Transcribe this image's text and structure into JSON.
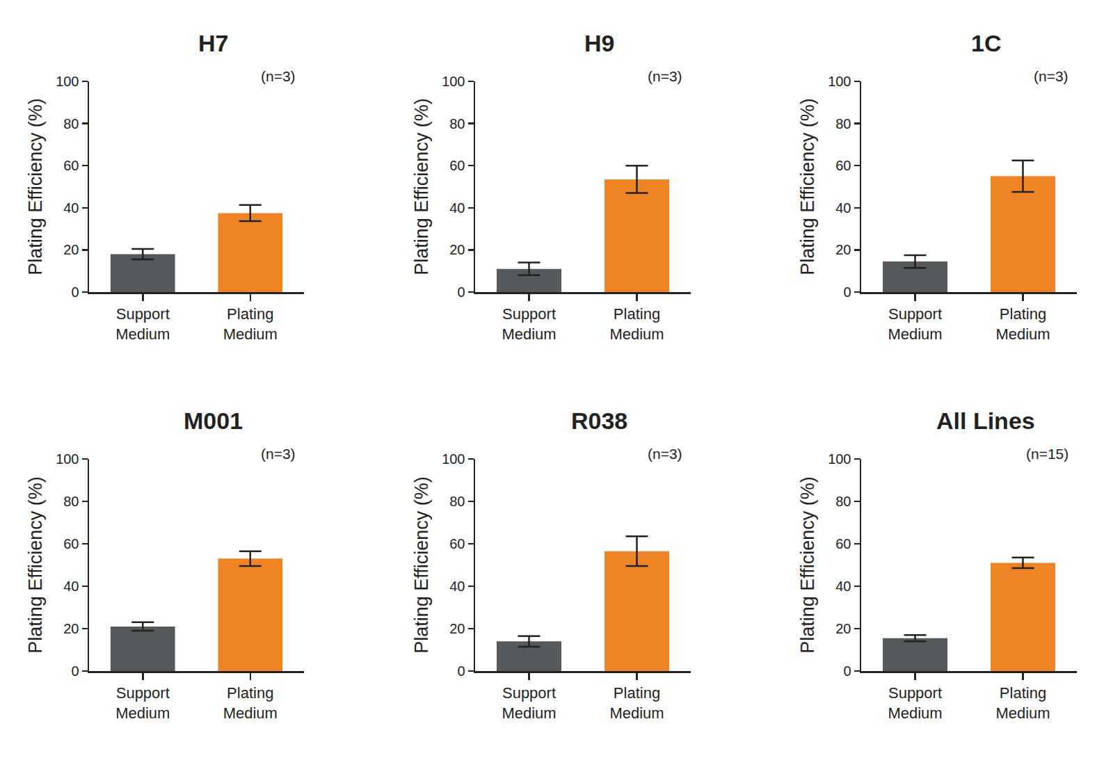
{
  "chart_data": [
    {
      "type": "bar",
      "title": "H7",
      "annotation": "(n=3)",
      "y_label": "Plating Efficiency (%)",
      "categories": [
        "Support Medium",
        "Plating Medium"
      ],
      "values": [
        18,
        37.5
      ],
      "errors": [
        2.5,
        3.8
      ],
      "colors": [
        "#555a5d",
        "#ee8426"
      ],
      "ylim": [
        0,
        100
      ],
      "yticks": [
        0,
        20,
        40,
        60,
        80,
        100
      ],
      "grid": false
    },
    {
      "type": "bar",
      "title": "H9",
      "annotation": "(n=3)",
      "y_label": "Plating Efficiency (%)",
      "categories": [
        "Support Medium",
        "Plating Medium"
      ],
      "values": [
        11,
        53.5
      ],
      "errors": [
        3,
        6.5
      ],
      "colors": [
        "#555a5d",
        "#ee8426"
      ],
      "ylim": [
        0,
        100
      ],
      "yticks": [
        0,
        20,
        40,
        60,
        80,
        100
      ],
      "grid": false
    },
    {
      "type": "bar",
      "title": "1C",
      "annotation": "(n=3)",
      "y_label": "Plating Efficiency (%)",
      "categories": [
        "Support Medium",
        "Plating Medium"
      ],
      "values": [
        14.5,
        55
      ],
      "errors": [
        3,
        7.5
      ],
      "colors": [
        "#555a5d",
        "#ee8426"
      ],
      "ylim": [
        0,
        100
      ],
      "yticks": [
        0,
        20,
        40,
        60,
        80,
        100
      ],
      "grid": false
    },
    {
      "type": "bar",
      "title": "M001",
      "annotation": "(n=3)",
      "y_label": "Plating Efficiency (%)",
      "categories": [
        "Support Medium",
        "Plating Medium"
      ],
      "values": [
        21,
        53
      ],
      "errors": [
        2,
        3.5
      ],
      "colors": [
        "#555a5d",
        "#ee8426"
      ],
      "ylim": [
        0,
        100
      ],
      "yticks": [
        0,
        20,
        40,
        60,
        80,
        100
      ],
      "grid": false
    },
    {
      "type": "bar",
      "title": "R038",
      "annotation": "(n=3)",
      "y_label": "Plating Efficiency (%)",
      "categories": [
        "Support Medium",
        "Plating Medium"
      ],
      "values": [
        14,
        56.5
      ],
      "errors": [
        2.5,
        7
      ],
      "colors": [
        "#555a5d",
        "#ee8426"
      ],
      "ylim": [
        0,
        100
      ],
      "yticks": [
        0,
        20,
        40,
        60,
        80,
        100
      ],
      "grid": false
    },
    {
      "type": "bar",
      "title": "All Lines",
      "annotation": "(n=15)",
      "y_label": "Plating Efficiency (%)",
      "categories": [
        "Support Medium",
        "Plating Medium"
      ],
      "values": [
        15.5,
        51
      ],
      "errors": [
        1.5,
        2.5
      ],
      "colors": [
        "#555a5d",
        "#ee8426"
      ],
      "ylim": [
        0,
        100
      ],
      "yticks": [
        0,
        20,
        40,
        60,
        80,
        100
      ],
      "grid": false
    }
  ]
}
